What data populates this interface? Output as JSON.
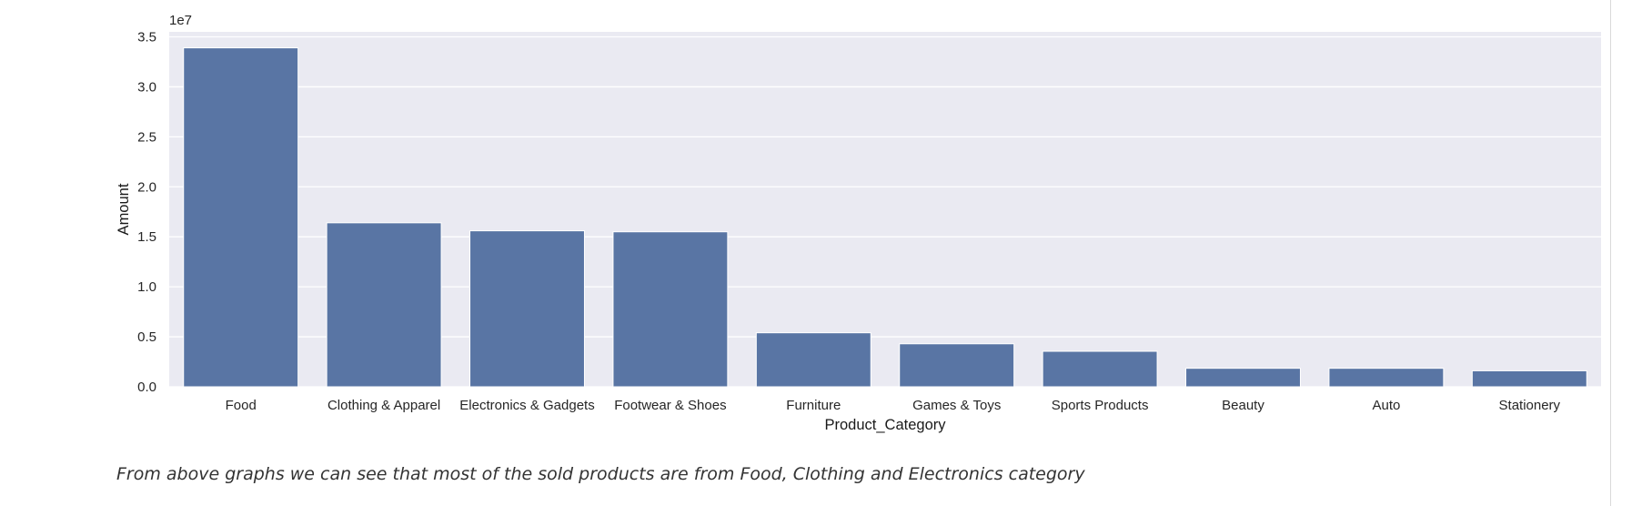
{
  "chart_data": {
    "type": "bar",
    "categories": [
      "Food",
      "Clothing & Apparel",
      "Electronics & Gadgets",
      "Footwear & Shoes",
      "Furniture",
      "Games & Toys",
      "Sports Products",
      "Beauty",
      "Auto",
      "Stationery"
    ],
    "values": [
      33900000,
      16400000,
      15600000,
      15500000,
      5400000,
      4300000,
      3550000,
      1850000,
      1850000,
      1600000
    ],
    "xlabel": "Product_Category",
    "ylabel": "Amount",
    "scale_label": "1e7",
    "ylim": [
      0,
      35500000.0
    ],
    "yticks": [
      0,
      5000000,
      10000000,
      15000000,
      20000000,
      25000000,
      30000000,
      35000000
    ],
    "ytick_labels": [
      "0.0",
      "0.5",
      "1.0",
      "1.5",
      "2.0",
      "2.5",
      "3.0",
      "3.5"
    ],
    "grid": true,
    "colors": {
      "bar": "#5975a4",
      "background": "#eaeaf2",
      "grid": "#ffffff"
    }
  },
  "caption": "From above graphs we can see that most of the sold products are from Food, Clothing and Electronics category"
}
